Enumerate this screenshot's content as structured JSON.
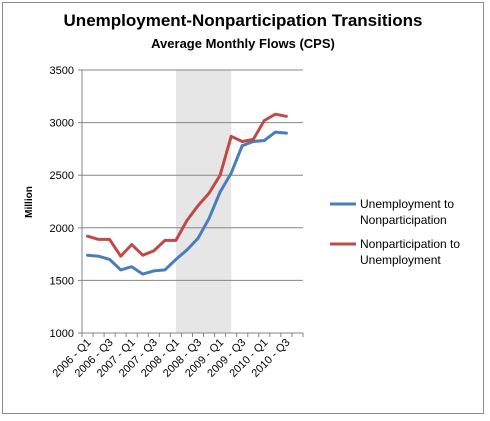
{
  "chart_data": {
    "type": "line",
    "title": "Unemployment-Nonparticipation Transitions",
    "subtitle": "Average Monthly Flows (CPS)",
    "ylabel": "Million",
    "xlabel": "",
    "ylim": [
      1000,
      3500
    ],
    "yticks": [
      1000,
      1500,
      2000,
      2500,
      3000,
      3500
    ],
    "categories": [
      "2006 - Q1",
      "2006 - Q2",
      "2006 - Q3",
      "2006 - Q4",
      "2007 - Q1",
      "2007 - Q2",
      "2007 - Q3",
      "2007 - Q4",
      "2008 - Q1",
      "2008 - Q2",
      "2008 - Q3",
      "2008 - Q4",
      "2009 - Q1",
      "2009 - Q2",
      "2009 - Q3",
      "2009 - Q4",
      "2010 - Q1",
      "2010 - Q2",
      "2010 - Q3",
      "2010 - Q4"
    ],
    "tick_labels": [
      "2006 - Q1",
      "2006 - Q3",
      "2007 - Q1",
      "2007 - Q3",
      "2008 - Q1",
      "2008 - Q3",
      "2009 - Q1",
      "2009 - Q3",
      "2010 - Q1",
      "2010 - Q3"
    ],
    "shaded_region": [
      "2008 - Q1",
      "2009 - Q2"
    ],
    "grid": "horizontal",
    "legend": "right",
    "series": [
      {
        "name": "Unemployment to Nonparticipation",
        "color": "#4a7ebb",
        "values": [
          1740,
          1730,
          1700,
          1600,
          1630,
          1560,
          1590,
          1600,
          1700,
          1790,
          1900,
          2090,
          2340,
          2520,
          2780,
          2820,
          2830,
          2910,
          2900,
          null
        ]
      },
      {
        "name": "Nonparticipation to Unemployment",
        "color": "#be4b48",
        "values": [
          1920,
          1890,
          1890,
          1730,
          1840,
          1740,
          1780,
          1880,
          1880,
          2070,
          2210,
          2330,
          2500,
          2870,
          2820,
          2840,
          3020,
          3080,
          3060,
          null
        ]
      }
    ]
  }
}
